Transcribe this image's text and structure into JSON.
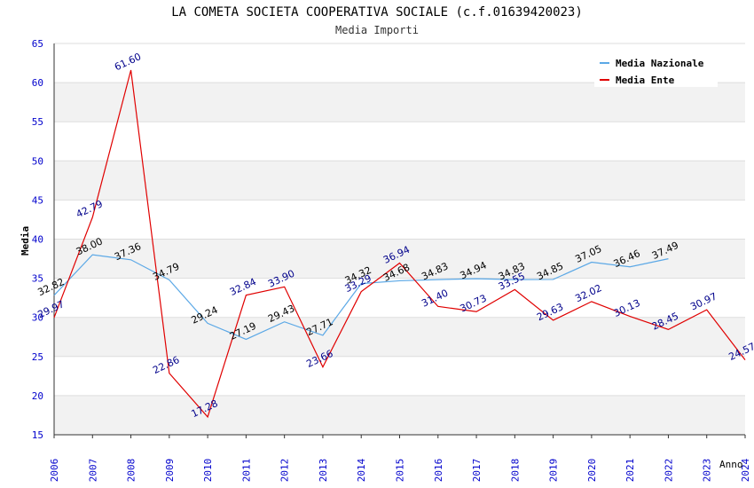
{
  "header": {
    "title": "LA COMETA SOCIETA COOPERATIVA SOCIALE (c.f.01639420023)",
    "subtitle": "Media Importi"
  },
  "colors": {
    "nazionale": "#5ba8e6",
    "ente": "#e00000",
    "ente_label": "#00008b",
    "nazionale_label": "#000000",
    "axis_text": "#0000cc",
    "band": "#f2f2f2",
    "grid": "#dddddd"
  },
  "chart_data": {
    "type": "line",
    "title": "LA COMETA SOCIETA COOPERATIVA SOCIALE (c.f.01639420023)",
    "subtitle": "Media Importi",
    "xlabel": "Anno",
    "ylabel": "Media",
    "ylim": [
      15,
      65
    ],
    "yticks": [
      15,
      20,
      25,
      30,
      35,
      40,
      45,
      50,
      55,
      60,
      65
    ],
    "categories": [
      "2006",
      "2007",
      "2008",
      "2009",
      "2010",
      "2011",
      "2012",
      "2013",
      "2014",
      "2015",
      "2016",
      "2017",
      "2018",
      "2019",
      "2020",
      "2021",
      "2022",
      "2023",
      "2024"
    ],
    "legend_position": "top-right",
    "series": [
      {
        "name": "Media Nazionale",
        "values": [
          32.82,
          38.0,
          37.36,
          34.79,
          29.24,
          27.19,
          29.43,
          27.71,
          34.32,
          34.68,
          34.83,
          34.94,
          34.83,
          34.85,
          37.05,
          36.46,
          37.49,
          null,
          null
        ],
        "labels": [
          "32.82",
          "38.00",
          "37.36",
          "34.79",
          "29.24",
          "27.19",
          "29.43",
          "27.71",
          "34.32",
          "34.68",
          "34.83",
          "34.94",
          "34.83",
          "34.85",
          "37.05",
          "36.46",
          "37.49",
          null,
          null
        ]
      },
      {
        "name": "Media Ente",
        "values": [
          29.97,
          42.79,
          61.6,
          22.86,
          17.28,
          32.84,
          33.9,
          23.66,
          33.29,
          36.94,
          31.4,
          30.73,
          33.55,
          29.63,
          32.02,
          30.13,
          28.45,
          30.97,
          24.57
        ],
        "labels": [
          "29.97",
          "42.79",
          "61.60",
          "22.86",
          "17.28",
          "32.84",
          "33.90",
          "23.66",
          "33.29",
          "36.94",
          "31.40",
          "30.73",
          "33.55",
          "29.63",
          "32.02",
          "30.13",
          "28.45",
          "30.97",
          "24.57"
        ]
      }
    ]
  }
}
